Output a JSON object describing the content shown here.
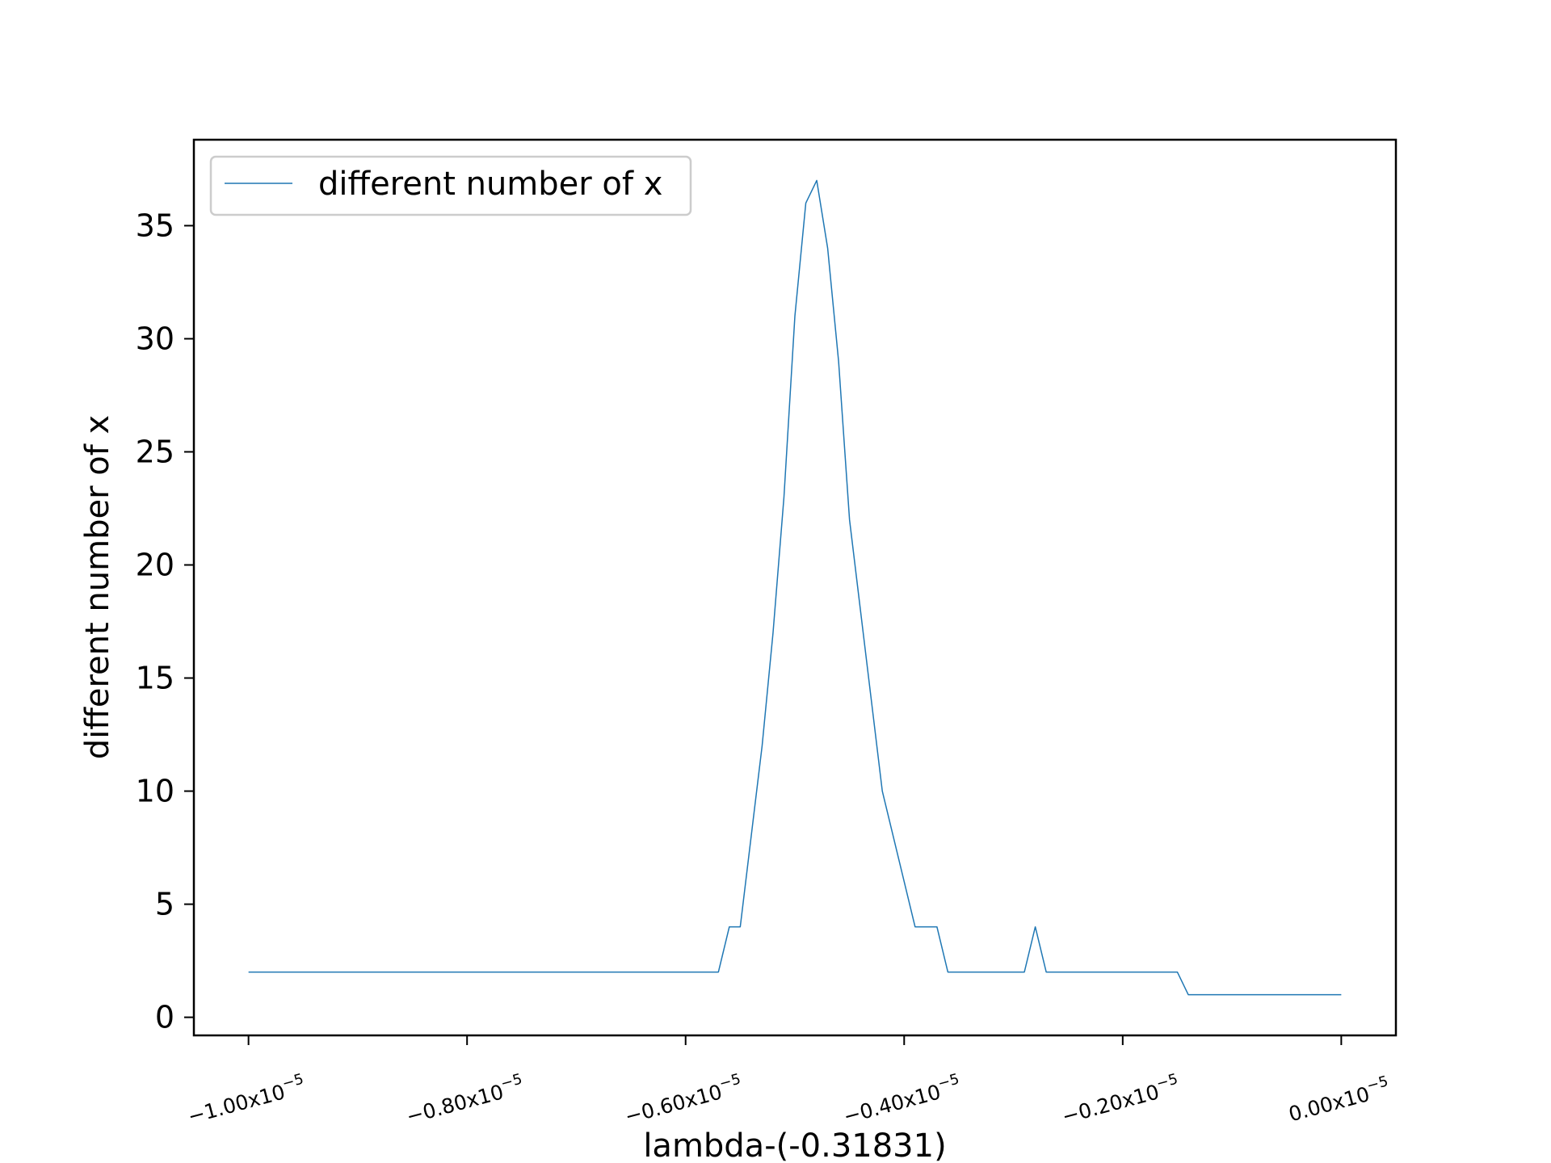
{
  "chart_data": {
    "type": "line",
    "title": "",
    "xlabel": "lambda-(-0.31831)",
    "ylabel": "different number of x",
    "xlim": [
      -1.05e-05,
      5e-07
    ],
    "ylim": [
      -0.8,
      38.8
    ],
    "x_ticks": [
      {
        "value": -1e-05,
        "label": "−1.00x10",
        "exp": "−5"
      },
      {
        "value": -8e-06,
        "label": "−0.80x10",
        "exp": "−5"
      },
      {
        "value": -6e-06,
        "label": "−0.60x10",
        "exp": "−5"
      },
      {
        "value": -4e-06,
        "label": "−0.40x10",
        "exp": "−5"
      },
      {
        "value": -2e-06,
        "label": "−0.20x10",
        "exp": "−5"
      },
      {
        "value": 0.0,
        "label": "0.00x10",
        "exp": "−5"
      }
    ],
    "y_ticks": [
      0,
      5,
      10,
      15,
      20,
      25,
      30,
      35
    ],
    "legend": {
      "placement": "upper-left"
    },
    "grid": false,
    "series": [
      {
        "name": "different number of x",
        "color": "#1f77b4",
        "x": [
          -1e-05,
          -5.7e-06,
          -5.6e-06,
          -5.5e-06,
          -5.3e-06,
          -5.2e-06,
          -5.1e-06,
          -5e-06,
          -4.9e-06,
          -4.8e-06,
          -4.7e-06,
          -4.6e-06,
          -4.5e-06,
          -4.4e-06,
          -4.2e-06,
          -3.9e-06,
          -3.7e-06,
          -3.6e-06,
          -2.9e-06,
          -2.8e-06,
          -2.7e-06,
          -1.5e-06,
          -1.4e-06,
          0.0
        ],
        "y": [
          2,
          2,
          4,
          4,
          12,
          17,
          23,
          31,
          36,
          37,
          34,
          29,
          22,
          18,
          10,
          4,
          4,
          2,
          2,
          4,
          2,
          2,
          1,
          1
        ]
      }
    ]
  }
}
